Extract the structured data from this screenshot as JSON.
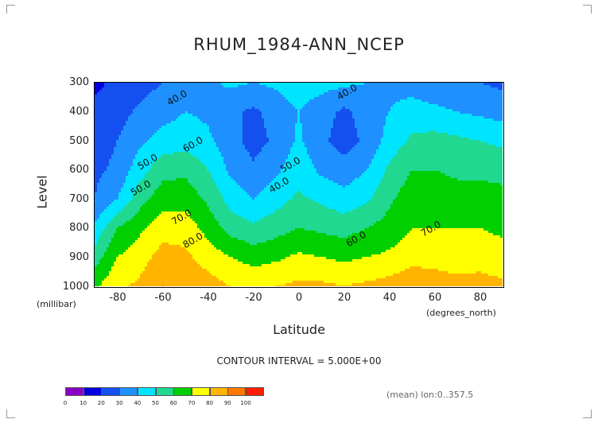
{
  "title": "RHUM_1984-ANN_NCEP",
  "y_axis": {
    "label": "Level",
    "unit": "(millibar)",
    "ticks": [
      "300",
      "400",
      "500",
      "600",
      "700",
      "800",
      "900",
      "1000"
    ]
  },
  "x_axis": {
    "label": "Latitude",
    "unit": "(degrees_north)",
    "ticks": [
      "-80",
      "-60",
      "-40",
      "-20",
      "0",
      "20",
      "40",
      "60",
      "80"
    ]
  },
  "contour_interval_text": "CONTOUR INTERVAL = 5.000E+00",
  "mean_text": "(mean) lon:0..357.5",
  "contour_labels": [
    "40.0",
    "40.0",
    "50.0",
    "60.0",
    "50.0",
    "40.0",
    "50.0",
    "70.0",
    "80.0",
    "60.0",
    "70.0"
  ],
  "colorbar": {
    "labels": [
      "0",
      "10",
      "20",
      "30",
      "40",
      "50",
      "60",
      "70",
      "80",
      "90",
      "100"
    ],
    "colors": [
      "#8a00c4",
      "#0000e0",
      "#1450f0",
      "#1e90ff",
      "#00e5ff",
      "#20d890",
      "#00d000",
      "#ffff00",
      "#ffb400",
      "#ff7800",
      "#ff1e00"
    ]
  },
  "chart_data": {
    "type": "heatmap",
    "title": "RHUM_1984-ANN_NCEP",
    "xlabel": "Latitude",
    "ylabel": "Level",
    "x_unit": "degrees_north",
    "y_unit": "millibar",
    "xlim": [
      -90,
      90
    ],
    "ylim": [
      1000,
      300
    ],
    "contour_interval": 5,
    "value_range": [
      0,
      100
    ],
    "x": [
      -90,
      -80,
      -70,
      -60,
      -50,
      -40,
      -30,
      -20,
      -10,
      0,
      10,
      20,
      30,
      40,
      50,
      60,
      70,
      80,
      90
    ],
    "y": [
      300,
      400,
      500,
      600,
      700,
      800,
      900,
      1000
    ],
    "z": [
      [
        18,
        22,
        26,
        30,
        34,
        38,
        42,
        40,
        42,
        46,
        44,
        42,
        40,
        38,
        36,
        34,
        32,
        30,
        28
      ],
      [
        22,
        26,
        32,
        36,
        40,
        38,
        32,
        28,
        34,
        40,
        34,
        28,
        34,
        40,
        44,
        42,
        40,
        38,
        36
      ],
      [
        26,
        30,
        38,
        44,
        46,
        42,
        34,
        26,
        32,
        42,
        32,
        26,
        32,
        44,
        52,
        54,
        52,
        50,
        48
      ],
      [
        28,
        32,
        46,
        56,
        58,
        50,
        38,
        32,
        38,
        46,
        38,
        34,
        40,
        52,
        60,
        60,
        58,
        58,
        56
      ],
      [
        30,
        40,
        56,
        66,
        66,
        58,
        46,
        40,
        46,
        52,
        48,
        44,
        48,
        58,
        66,
        66,
        64,
        64,
        64
      ],
      [
        42,
        60,
        68,
        76,
        76,
        66,
        56,
        52,
        56,
        60,
        58,
        56,
        60,
        64,
        70,
        70,
        70,
        70,
        68
      ],
      [
        55,
        70,
        76,
        84,
        82,
        76,
        70,
        66,
        68,
        72,
        70,
        68,
        70,
        72,
        76,
        76,
        74,
        76,
        74
      ],
      [
        68,
        78,
        82,
        90,
        88,
        84,
        80,
        78,
        80,
        82,
        82,
        80,
        82,
        84,
        88,
        86,
        84,
        84,
        82
      ]
    ]
  }
}
